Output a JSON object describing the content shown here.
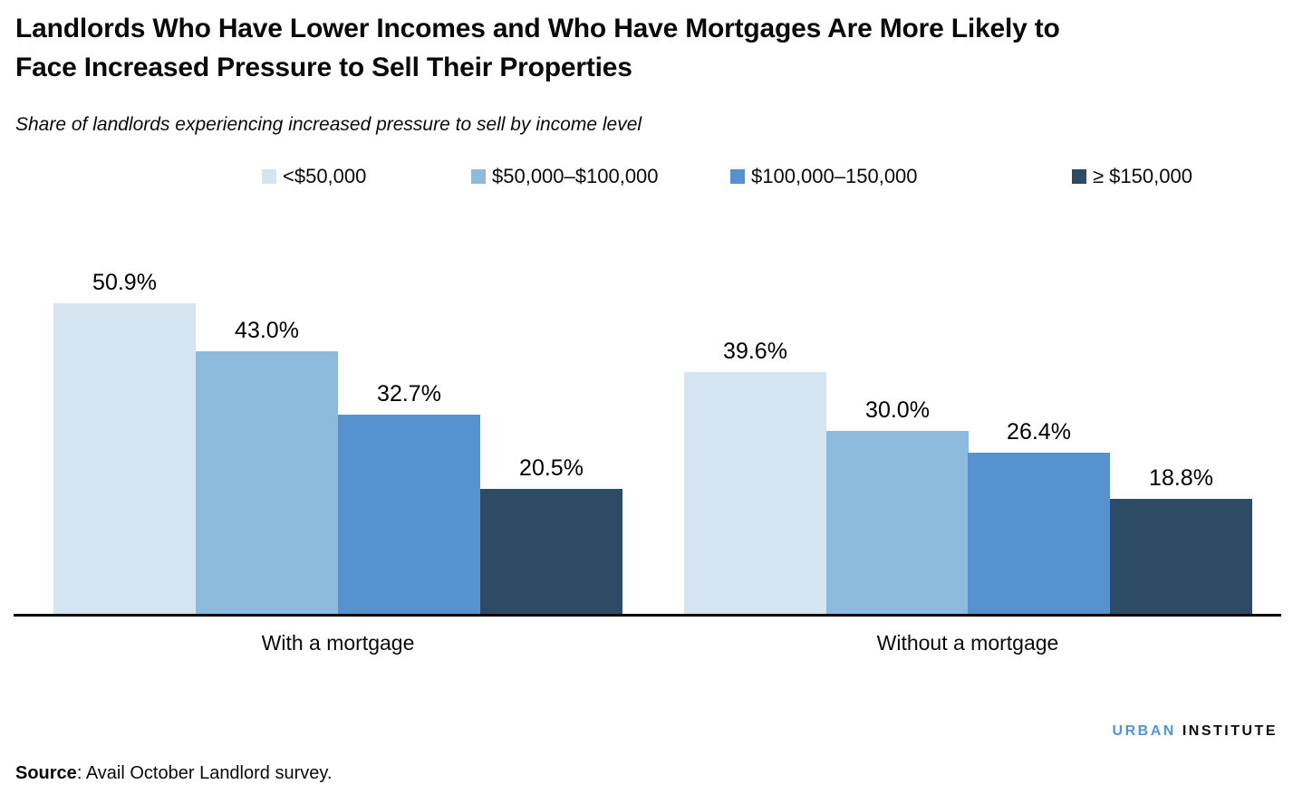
{
  "header": {
    "title": "Landlords Who Have Lower Incomes and Who Have Mortgages Are More Likely to\nFace Increased Pressure to Sell Their Properties",
    "subtitle": "Share of landlords experiencing increased pressure to sell by income level"
  },
  "chart_data": {
    "type": "bar",
    "categories": [
      "With a mortgage",
      "Without a mortgage"
    ],
    "series": [
      {
        "name": "<$50,000",
        "color": "#D5E4F1",
        "values": [
          50.9,
          39.6
        ]
      },
      {
        "name": "$50,000–$100,000",
        "color": "#8DBBDE",
        "values": [
          43.0,
          30.0
        ]
      },
      {
        "name": "$100,000–150,000",
        "color": "#5592CF",
        "values": [
          32.7,
          26.4
        ]
      },
      {
        "name": "≥ $150,000",
        "color": "#2E4B66",
        "values": [
          20.5,
          18.8
        ]
      }
    ],
    "value_labels": [
      [
        "50.9%",
        "43.0%",
        "32.7%",
        "20.5%"
      ],
      [
        "39.6%",
        "30.0%",
        "26.4%",
        "18.8%"
      ]
    ],
    "title": "Share of landlords experiencing increased pressure to sell by income level",
    "xlabel": "",
    "ylabel": "",
    "ylim": [
      0,
      59
    ],
    "grid": false,
    "legend_position": "top",
    "axis_color": "#000000"
  },
  "footer": {
    "source_label": "Source",
    "source_text": ": Avail October Landlord survey.",
    "logo_part1": "URBAN",
    "logo_part2": "INSTITUTE",
    "logo_color1": "#4F95D7",
    "logo_color2": "#0d0d0d"
  }
}
